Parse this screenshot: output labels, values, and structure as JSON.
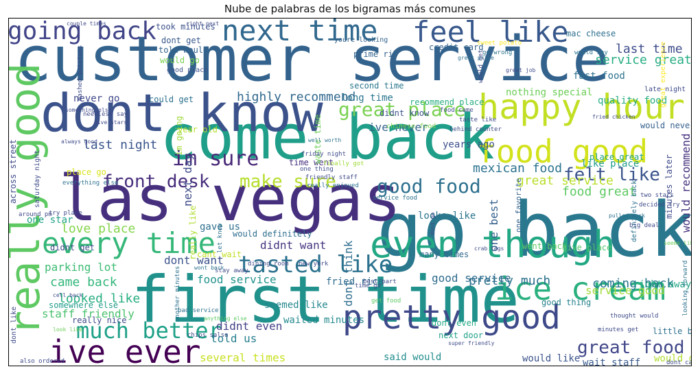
{
  "chart_data": {
    "type": "wordcloud",
    "title": "Nube de palabras de los bigramas más comunes",
    "colormap": "viridis",
    "words": [
      {
        "text": "customer service",
        "c": "#33638d",
        "v": 1.0
      },
      {
        "text": "go back",
        "c": "#2a788e",
        "v": 0.8
      },
      {
        "text": "las vegas",
        "c": "#46307e",
        "v": 0.68
      },
      {
        "text": "first time",
        "c": "#21918c",
        "v": 0.68
      },
      {
        "text": "come back",
        "c": "#1f9e89",
        "v": 0.66
      },
      {
        "text": "dont know",
        "c": "#3b528b",
        "v": 0.58
      },
      {
        "text": "really good",
        "c": "#5ec962",
        "v": 0.44
      },
      {
        "text": "even though",
        "c": "#22a884",
        "v": 0.4
      },
      {
        "text": "pretty good",
        "c": "#3e4989",
        "v": 0.36
      },
      {
        "text": "happy hour",
        "c": "#c2df23",
        "v": 0.36
      },
      {
        "text": "food good",
        "c": "#d2e21b",
        "v": 0.35
      },
      {
        "text": "ice cream",
        "c": "#2ab07f",
        "v": 0.35
      },
      {
        "text": "next time",
        "c": "#31688e",
        "v": 0.33
      },
      {
        "text": "feel like",
        "c": "#38588c",
        "v": 0.33
      },
      {
        "text": "ive ever",
        "c": "#440154",
        "v": 0.33
      },
      {
        "text": "every time",
        "c": "#35b779",
        "v": 0.33
      },
      {
        "text": "going back",
        "c": "#414487",
        "v": 0.27
      },
      {
        "text": "much better",
        "c": "#1fa188",
        "v": 0.26
      },
      {
        "text": "tasted like",
        "c": "#2c728e",
        "v": 0.25
      },
      {
        "text": "im sure",
        "c": "#482878",
        "v": 0.24
      },
      {
        "text": "good food",
        "c": "#2d708e",
        "v": 0.22
      },
      {
        "text": "great place",
        "c": "#7ad151",
        "v": 0.22
      },
      {
        "text": "felt like",
        "c": "#3a548c",
        "v": 0.2
      },
      {
        "text": "great food",
        "c": "#404688",
        "v": 0.2
      },
      {
        "text": "make sure",
        "c": "#b5de2b",
        "v": 0.2
      },
      {
        "text": "front desk",
        "c": "#472d7b",
        "v": 0.2
      },
      {
        "text": "highly recommend",
        "c": "#31688e",
        "v": 0.15
      },
      {
        "text": "last night",
        "c": "#39568c",
        "v": 0.14
      },
      {
        "text": "last time",
        "c": "#3e4c8a",
        "v": 0.14
      },
      {
        "text": "great service",
        "c": "#b8de29",
        "v": 0.14
      },
      {
        "text": "food great",
        "c": "#5ec962",
        "v": 0.14
      },
      {
        "text": "mexican food",
        "c": "#2c738e",
        "v": 0.12
      },
      {
        "text": "love place",
        "c": "#84d44b",
        "v": 0.12
      },
      {
        "text": "service great",
        "c": "#25ac82",
        "v": 0.12
      },
      {
        "text": "coming back",
        "c": "#2a768e",
        "v": 0.12
      },
      {
        "text": "came back",
        "c": "#32b67a",
        "v": 0.12
      },
      {
        "text": "looked like",
        "c": "#27ad81",
        "v": 0.12
      },
      {
        "text": "staff friendly",
        "c": "#4ac16d",
        "v": 0.11
      },
      {
        "text": "pretty much",
        "c": "#2c718e",
        "v": 0.11
      },
      {
        "text": "dont want",
        "c": "#3b528b",
        "v": 0.1
      },
      {
        "text": "didnt want",
        "c": "#463480",
        "v": 0.1
      },
      {
        "text": "parking lot",
        "c": "#3dbc74",
        "v": 0.1
      },
      {
        "text": "told us",
        "c": "#277f8e",
        "v": 0.1
      },
      {
        "text": "didnt even",
        "c": "#424086",
        "v": 0.1
      },
      {
        "text": "service good",
        "c": "#a0da39",
        "v": 0.1
      },
      {
        "text": "good service",
        "c": "#2f6c8e",
        "v": 0.09
      },
      {
        "text": "food service",
        "c": "#20928c",
        "v": 0.09
      },
      {
        "text": "would recommend",
        "c": "#46327e",
        "v": 0.09
      },
      {
        "text": "ive never",
        "c": "#33628d",
        "v": 0.09
      },
      {
        "text": "several times",
        "c": "#c8e020",
        "v": 0.09
      },
      {
        "text": "dont think",
        "c": "#2e6e8e",
        "v": 0.09
      },
      {
        "text": "one best",
        "c": "#34608d",
        "v": 0.09
      },
      {
        "text": "next day",
        "c": "#3e4a89",
        "v": 0.08
      },
      {
        "text": "never go",
        "c": "#3f4788",
        "v": 0.08
      },
      {
        "text": "years ago",
        "c": "#3c508b",
        "v": 0.08
      },
      {
        "text": "like place",
        "c": "#1e9c89",
        "v": 0.08
      },
      {
        "text": "seemed like",
        "c": "#24878e",
        "v": 0.08
      },
      {
        "text": "waited minutes",
        "c": "#23898e",
        "v": 0.08
      },
      {
        "text": "said would",
        "c": "#228c8d",
        "v": 0.08
      },
      {
        "text": "would like",
        "c": "#3a538b",
        "v": 0.08
      },
      {
        "text": "wait staff",
        "c": "#375a8c",
        "v": 0.08
      },
      {
        "text": "fried rice",
        "c": "#2f6b8e",
        "v": 0.07
      },
      {
        "text": "looks like",
        "c": "#2b758e",
        "v": 0.07
      },
      {
        "text": "nothing special",
        "c": "#6ece58",
        "v": 0.07
      },
      {
        "text": "gave us",
        "c": "#2e6f8e",
        "v": 0.07
      },
      {
        "text": "one star",
        "c": "#1fa187",
        "v": 0.07
      },
      {
        "text": "would give",
        "c": "#b0dd2f",
        "v": 0.07
      },
      {
        "text": "right away",
        "c": "#21a685",
        "v": 0.07
      },
      {
        "text": "good thing",
        "c": "#26828e",
        "v": 0.07
      },
      {
        "text": "fast food",
        "c": "#2c718e",
        "v": 0.07
      },
      {
        "text": "quality food",
        "c": "#25ac82",
        "v": 0.07
      },
      {
        "text": "long time",
        "c": "#2a768e",
        "v": 0.07
      },
      {
        "text": "credit card",
        "c": "#33638d",
        "v": 0.06
      },
      {
        "text": "prime rib",
        "c": "#33638d",
        "v": 0.06
      },
      {
        "text": "mac cheese",
        "c": "#2d708e",
        "v": 0.06
      },
      {
        "text": "took minutes",
        "c": "#3b528b",
        "v": 0.06
      },
      {
        "text": "dont get",
        "c": "#38598c",
        "v": 0.06
      },
      {
        "text": "told would",
        "c": "#33638d",
        "v": 0.06
      },
      {
        "text": "would go",
        "c": "#7ad151",
        "v": 0.06
      },
      {
        "text": "could get",
        "c": "#2c718e",
        "v": 0.06
      },
      {
        "text": "recommend place",
        "c": "#27ad81",
        "v": 0.06
      },
      {
        "text": "cant wait",
        "c": "#c2df23",
        "v": 0.06
      },
      {
        "text": "would definitely",
        "c": "#2e6e8e",
        "v": 0.06
      },
      {
        "text": "little bit",
        "c": "#2c718e",
        "v": 0.06
      },
      {
        "text": "went back",
        "c": "#5ec962",
        "v": 0.06
      },
      {
        "text": "give place",
        "c": "#52c569",
        "v": 0.06
      },
      {
        "text": "many times",
        "c": "#31688e",
        "v": 0.06
      },
      {
        "text": "dont even",
        "c": "#22a884",
        "v": 0.06
      },
      {
        "text": "next door",
        "c": "#1fa188",
        "v": 0.06
      },
      {
        "text": "would never",
        "c": "#35608d",
        "v": 0.06
      },
      {
        "text": "across street",
        "c": "#3e4a89",
        "v": 0.05
      },
      {
        "text": "year old",
        "c": "#b5de2b",
        "v": 0.05
      },
      {
        "text": "im going",
        "c": "#a0da39",
        "v": 0.05
      },
      {
        "text": "place go",
        "c": "#d8e219",
        "v": 0.05
      },
      {
        "text": "didnt get",
        "c": "#3e4a89",
        "v": 0.05
      },
      {
        "text": "time went",
        "c": "#46307e",
        "v": 0.05
      },
      {
        "text": "waste time",
        "c": "#6ece58",
        "v": 0.05
      },
      {
        "text": "second time",
        "c": "#2a788e",
        "v": 0.05
      },
      {
        "text": "didnt know",
        "c": "#3b528b",
        "v": 0.05
      },
      {
        "text": "minutes later",
        "c": "#3e4989",
        "v": 0.05
      },
      {
        "text": "definitely back",
        "c": "#2c718e",
        "v": 0.04
      },
      {
        "text": "really like",
        "c": "#b0dd2f",
        "v": 0.05
      },
      {
        "text": "place great",
        "c": "#1fa188",
        "v": 0.04
      },
      {
        "text": "saturday night",
        "c": "#3e4a89",
        "v": 0.04
      },
      {
        "text": "somewhere else",
        "c": "#1e9c89",
        "v": 0.04
      },
      {
        "text": "really nice",
        "c": "#3e4a89",
        "v": 0.04
      },
      {
        "text": "dont like",
        "c": "#3e4a89",
        "v": 0.04
      },
      {
        "text": "look like",
        "c": "#6ece58",
        "v": 0.03
      },
      {
        "text": "also ordered",
        "c": "#3e4a89",
        "v": 0.035
      },
      {
        "text": "let know",
        "c": "#2c718e",
        "v": 0.035
      },
      {
        "text": "one favorite",
        "c": "#33638d",
        "v": 0.04
      },
      {
        "text": "great experience",
        "c": "#fde725",
        "v": 0.035
      },
      {
        "text": "good place",
        "c": "#3b528b",
        "v": 0.035
      },
      {
        "text": "chinese food",
        "c": "#7ad151",
        "v": 0.035
      },
      {
        "text": "late night",
        "c": "#3e4a89",
        "v": 0.035
      },
      {
        "text": "youre looking",
        "c": "#33638d",
        "v": 0.035
      },
      {
        "text": "sweet potato",
        "c": "#fde725",
        "v": 0.03
      },
      {
        "text": "friday night",
        "c": "#3e4a89",
        "v": 0.035
      },
      {
        "text": "finally got",
        "c": "#a0da39",
        "v": 0.035
      },
      {
        "text": "one thing",
        "c": "#3e4a89",
        "v": 0.035
      },
      {
        "text": "friendly staff",
        "c": "#3e4a89",
        "v": 0.035
      },
      {
        "text": "really enjoyed",
        "c": "#2c718e",
        "v": 0.035
      },
      {
        "text": "behind counter",
        "c": "#3e4a89",
        "v": 0.035
      },
      {
        "text": "taste like",
        "c": "#3e4a89",
        "v": 0.035
      },
      {
        "text": "food came",
        "c": "#3e4a89",
        "v": 0.035
      },
      {
        "text": "everything else",
        "c": "#2c718e",
        "v": 0.035
      },
      {
        "text": "around pm",
        "c": "#3e4a89",
        "v": 0.035
      },
      {
        "text": "go wrong",
        "c": "#2c718e",
        "v": 0.035
      },
      {
        "text": "would get",
        "c": "#3e4a89",
        "v": 0.035
      },
      {
        "text": "would say",
        "c": "#2c718e",
        "v": 0.035
      },
      {
        "text": "needless say",
        "c": "#3e4a89",
        "v": 0.035
      },
      {
        "text": "mashed potatoes",
        "c": "#3e4a89",
        "v": 0.035
      },
      {
        "text": "give stars",
        "c": "#3e4a89",
        "v": 0.03
      },
      {
        "text": "well worth",
        "c": "#2c718e",
        "v": 0.03
      },
      {
        "text": "dining room",
        "c": "#3e4a89",
        "v": 0.035
      },
      {
        "text": "new york",
        "c": "#3e4a89",
        "v": 0.035
      },
      {
        "text": "time go",
        "c": "#3e4a89",
        "v": 0.035
      },
      {
        "text": "stay away",
        "c": "#3e4a89",
        "v": 0.035
      },
      {
        "text": "bad service",
        "c": "#2c718e",
        "v": 0.035
      },
      {
        "text": "another minutes",
        "c": "#2c718e",
        "v": 0.035
      },
      {
        "text": "anything else",
        "c": "#5ec962",
        "v": 0.03
      },
      {
        "text": "chips salsa",
        "c": "#3e4a89",
        "v": 0.035
      },
      {
        "text": "get food",
        "c": "#5ec962",
        "v": 0.035
      },
      {
        "text": "best part",
        "c": "#3e4a89",
        "v": 0.035
      },
      {
        "text": "two stars",
        "c": "#3e4a89",
        "v": 0.035
      },
      {
        "text": "decided try",
        "c": "#3e4a89",
        "v": 0.035
      },
      {
        "text": "big deal",
        "c": "#3e4a89",
        "v": 0.035
      },
      {
        "text": "thought would",
        "c": "#3e4a89",
        "v": 0.035
      },
      {
        "text": "minutes get",
        "c": "#3e4a89",
        "v": 0.035
      },
      {
        "text": "looking forward",
        "c": "#2c718e",
        "v": 0.035
      },
      {
        "text": "dont care",
        "c": "#3e4a89",
        "v": 0.035
      },
      {
        "text": "pulled pork",
        "c": "#2c718e",
        "v": 0.03
      },
      {
        "text": "seems like",
        "c": "#6ece58",
        "v": 0.03
      },
      {
        "text": "service food",
        "c": "#2c718e",
        "v": 0.035
      },
      {
        "text": "try place",
        "c": "#3e4a89",
        "v": 0.035
      },
      {
        "text": "super friendly",
        "c": "#3e4a89",
        "v": 0.03
      },
      {
        "text": "wont back",
        "c": "#2c718e",
        "v": 0.03
      },
      {
        "text": "couple times",
        "c": "#3e4a89",
        "v": 0.03
      },
      {
        "text": "right next",
        "c": "#3e4a89",
        "v": 0.03
      },
      {
        "text": "great job",
        "c": "#3e4a89",
        "v": 0.03
      },
      {
        "text": "great price",
        "c": "#2c718e",
        "v": 0.03
      },
      {
        "text": "fried chicken",
        "c": "#3e4a89",
        "v": 0.03
      },
      {
        "text": "something else",
        "c": "#3e4a89",
        "v": 0.03
      },
      {
        "text": "always good",
        "c": "#3e4a89",
        "v": 0.03
      },
      {
        "text": "dont go",
        "c": "#3e4a89",
        "v": 0.03
      },
      {
        "text": "cell back",
        "c": "#3e4a89",
        "v": 0.03
      },
      {
        "text": "crab legs",
        "c": "#3e4a89",
        "v": 0.03
      }
    ]
  }
}
